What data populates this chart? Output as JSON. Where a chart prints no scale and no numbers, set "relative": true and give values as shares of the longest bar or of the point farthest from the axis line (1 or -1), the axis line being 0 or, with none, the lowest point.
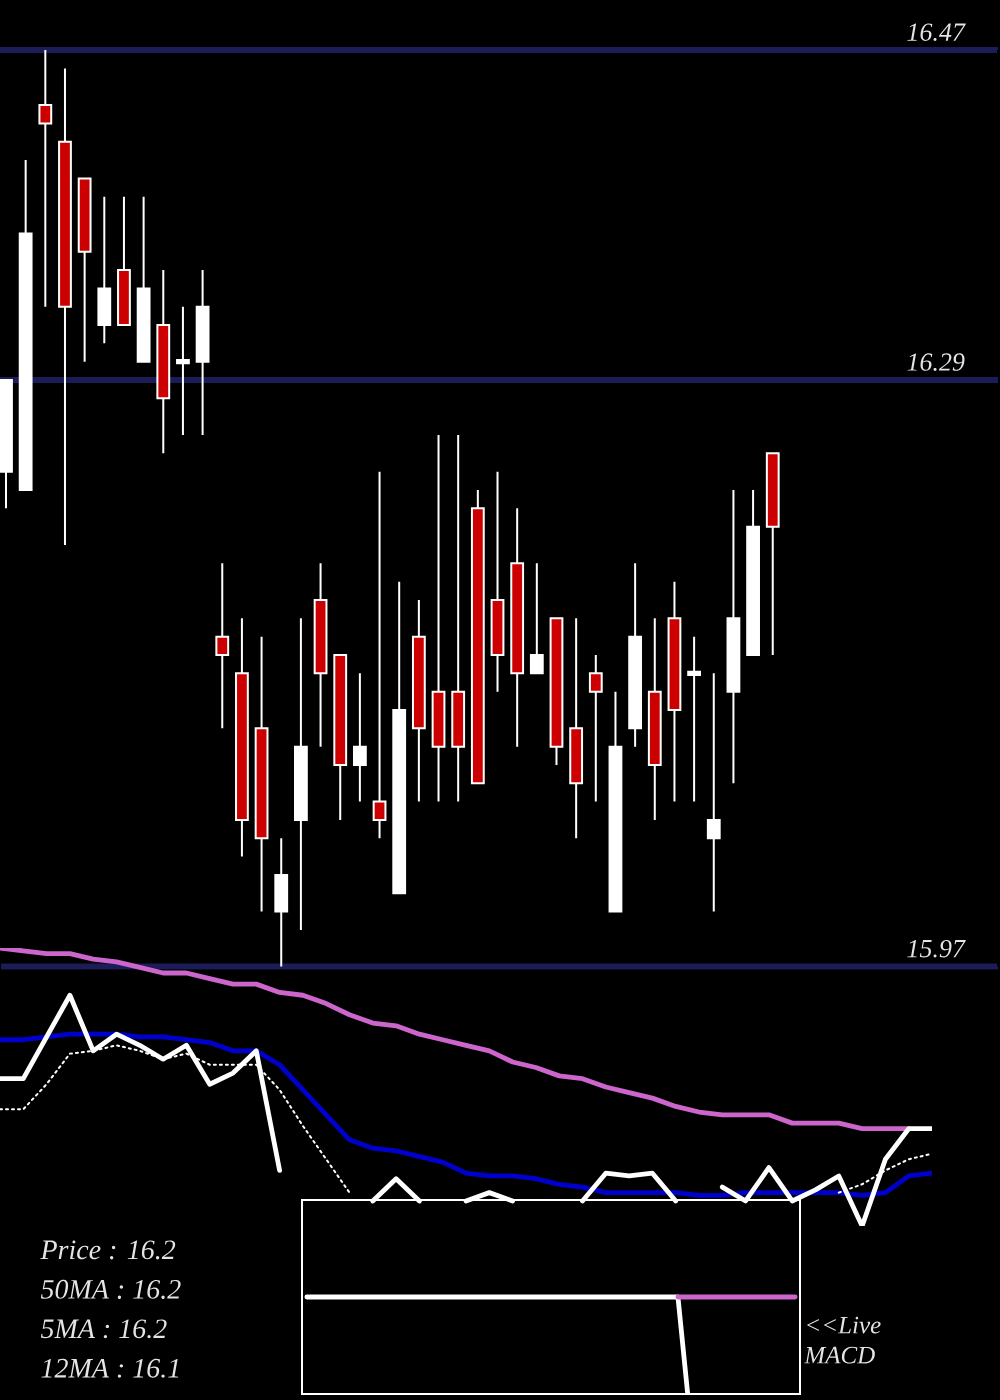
{
  "chart_data": [
    {
      "type": "candlestick",
      "categories": [
        null,
        null,
        null,
        null,
        null,
        null,
        null,
        null,
        null,
        null,
        null,
        null,
        null,
        null,
        null,
        null,
        null,
        null,
        null,
        null,
        null,
        null,
        null,
        null,
        null,
        null,
        null,
        null,
        null,
        null,
        null,
        null,
        null,
        null,
        null,
        null,
        null,
        null,
        null,
        null
      ],
      "ohlc": [
        [
          16.24,
          16.29,
          16.22,
          16.29
        ],
        [
          16.23,
          16.41,
          16.23,
          16.37
        ],
        [
          16.44,
          16.47,
          16.33,
          16.43
        ],
        [
          16.42,
          16.46,
          16.2,
          16.33
        ],
        [
          16.4,
          16.4,
          16.3,
          16.36
        ],
        [
          16.32,
          16.39,
          16.31,
          16.34
        ],
        [
          16.35,
          16.39,
          16.32,
          16.32
        ],
        [
          16.3,
          16.39,
          16.3,
          16.34
        ],
        [
          16.32,
          16.35,
          16.25,
          16.28
        ],
        [
          16.3,
          16.33,
          16.26,
          16.3
        ],
        [
          16.3,
          16.35,
          16.26,
          16.33
        ],
        [
          16.15,
          16.19,
          16.1,
          16.14
        ],
        [
          16.13,
          16.16,
          16.03,
          16.05
        ],
        [
          16.1,
          16.15,
          16.0,
          16.04
        ],
        [
          16.0,
          16.04,
          15.97,
          16.02
        ],
        [
          16.05,
          16.16,
          15.99,
          16.09
        ],
        [
          16.17,
          16.19,
          16.09,
          16.13
        ],
        [
          16.14,
          16.14,
          16.05,
          16.08
        ],
        [
          16.08,
          16.13,
          16.06,
          16.09
        ],
        [
          16.06,
          16.24,
          16.04,
          16.05
        ],
        [
          16.01,
          16.18,
          16.01,
          16.11
        ],
        [
          16.15,
          16.17,
          16.06,
          16.1
        ],
        [
          16.12,
          16.26,
          16.06,
          16.09
        ],
        [
          16.12,
          16.26,
          16.06,
          16.09
        ],
        [
          16.22,
          16.23,
          16.07,
          16.07
        ],
        [
          16.17,
          16.24,
          16.12,
          16.14
        ],
        [
          16.19,
          16.22,
          16.09,
          16.13
        ],
        [
          16.13,
          16.19,
          16.13,
          16.14
        ],
        [
          16.16,
          16.16,
          16.08,
          16.09
        ],
        [
          16.1,
          16.16,
          16.04,
          16.07
        ],
        [
          16.13,
          16.14,
          16.06,
          16.12
        ],
        [
          16.0,
          16.12,
          16.0,
          16.09
        ],
        [
          16.1,
          16.19,
          16.09,
          16.15
        ],
        [
          16.12,
          16.16,
          16.05,
          16.08
        ],
        [
          16.16,
          16.18,
          16.06,
          16.11
        ],
        [
          16.13,
          16.15,
          16.06,
          16.13
        ],
        [
          16.04,
          16.13,
          16.0,
          16.05
        ],
        [
          16.12,
          16.23,
          16.07,
          16.16
        ],
        [
          16.14,
          16.23,
          16.14,
          16.21
        ],
        [
          16.25,
          16.25,
          16.14,
          16.21
        ]
      ],
      "ylim": [
        15.97,
        16.47
      ],
      "yticks": [
        15.97,
        16.29,
        16.47
      ],
      "ref_lines": [
        {
          "axis": "y",
          "value": 16.29,
          "color": "#1c1c58"
        }
      ],
      "tick_labels": "y"
    },
    {
      "type": "line",
      "relative": true,
      "categories": [
        null,
        null,
        null,
        null,
        null,
        null,
        null,
        null,
        null,
        null,
        null,
        null,
        null,
        null,
        null,
        null,
        null,
        null,
        null,
        null,
        null,
        null,
        null,
        null,
        null,
        null,
        null,
        null,
        null,
        null,
        null,
        null,
        null,
        null,
        null,
        null,
        null,
        null,
        null,
        null,
        null
      ],
      "series": [
        {
          "color": "#cc66cc",
          "values": [
            1,
            0.99,
            0.98,
            0.98,
            0.96,
            0.95,
            0.93,
            0.91,
            0.91,
            0.89,
            0.87,
            0.87,
            0.84,
            0.83,
            0.8,
            0.76,
            0.73,
            0.72,
            0.69,
            0.67,
            0.65,
            0.63,
            0.59,
            0.57,
            0.54,
            0.53,
            0.5,
            0.48,
            0.46,
            0.43,
            0.41,
            0.4,
            0.4,
            0.4,
            0.37,
            0.37,
            0.37,
            0.35,
            0.35,
            0.35,
            null
          ]
        },
        {
          "color": "#0000cc",
          "values": [
            0.67,
            0.67,
            0.68,
            0.69,
            0.69,
            0.69,
            0.68,
            0.68,
            0.67,
            0.66,
            0.63,
            0.63,
            0.58,
            0.49,
            0.4,
            0.31,
            0.28,
            0.27,
            0.25,
            0.23,
            0.19,
            0.18,
            0.18,
            0.17,
            0.15,
            0.14,
            0.12,
            0.12,
            0.12,
            0.12,
            0.11,
            0.11,
            0.12,
            0.12,
            0.12,
            0.12,
            0.12,
            0.11,
            0.12,
            0.18,
            0.19
          ]
        },
        {
          "color": "#ffffff",
          "line_style": "dotted",
          "values": [
            0.42,
            0.42,
            0.51,
            0.62,
            0.63,
            0.65,
            0.63,
            0.6,
            0.62,
            0.58,
            0.58,
            0.58,
            0.49,
            0.36,
            0.24,
            0.12,
            null,
            null,
            null,
            null,
            null,
            null,
            null,
            null,
            null,
            null,
            null,
            null,
            null,
            null,
            null,
            null,
            null,
            null,
            null,
            null,
            0.12,
            0.15,
            0.2,
            0.24,
            0.26
          ]
        },
        {
          "color": "#ffffff",
          "values": [
            0.53,
            0.53,
            0.68,
            0.83,
            0.63,
            0.69,
            0.65,
            0.6,
            0.65,
            0.51,
            0.55,
            0.63,
            0.2,
            null,
            null,
            null,
            0.09,
            0.17,
            0.09,
            null,
            0.09,
            0.12,
            0.09,
            null,
            null,
            0.09,
            0.19,
            0.18,
            0.19,
            0.09,
            null,
            0.14,
            0.09,
            0.21,
            0.09,
            0.13,
            0.18,
            0,
            0.24,
            0.35,
            0.35
          ]
        }
      ],
      "annotations": [
        "Price : 16.2",
        "50MA : 16.2",
        "5MA : 16.2",
        "12MA : 16.1"
      ]
    },
    {
      "type": "line",
      "relative": true,
      "categories": [
        null,
        null,
        null,
        null,
        null,
        null,
        null,
        null,
        null,
        null,
        null,
        null,
        null,
        null,
        null,
        null,
        null,
        null,
        null,
        null,
        null,
        null,
        null,
        null,
        null,
        null,
        null,
        null,
        null,
        null,
        null,
        null,
        null,
        null,
        null,
        null,
        null,
        null,
        null,
        null,
        null,
        null,
        null,
        null,
        null,
        null,
        null,
        null,
        null,
        null,
        null
      ],
      "series": [
        {
          "color": "#ffffff",
          "values": [
            1,
            1,
            1,
            1,
            1,
            1,
            1,
            1,
            1,
            1,
            1,
            1,
            1,
            1,
            1,
            1,
            1,
            1,
            1,
            1,
            1,
            1,
            1,
            1,
            1,
            1,
            1,
            1,
            1,
            1,
            1,
            1,
            1,
            1,
            1,
            1,
            1,
            1,
            1,
            0,
            null,
            null,
            null,
            null,
            null,
            null,
            null,
            null,
            null,
            null,
            null
          ]
        },
        {
          "color": "#cc66cc",
          "values": [
            null,
            null,
            null,
            null,
            null,
            null,
            null,
            null,
            null,
            null,
            null,
            null,
            null,
            null,
            null,
            null,
            null,
            null,
            null,
            null,
            null,
            null,
            null,
            null,
            null,
            null,
            null,
            null,
            null,
            null,
            null,
            null,
            null,
            null,
            null,
            null,
            null,
            null,
            1,
            1,
            1,
            1,
            1,
            1,
            1,
            1,
            1,
            1,
            1,
            1,
            1
          ]
        }
      ],
      "annotations": [
        "<<Live MACD"
      ]
    }
  ]
}
